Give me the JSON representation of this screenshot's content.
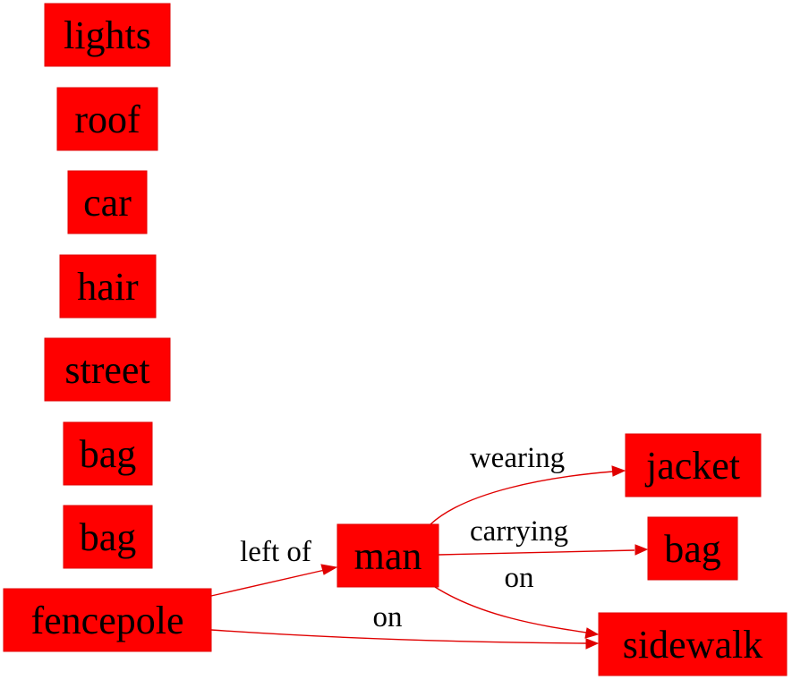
{
  "colors": {
    "node_fill": "#ff0000",
    "edge_stroke": "#e00000",
    "text": "#000000"
  },
  "nodes": [
    {
      "id": "lights",
      "label": "lights"
    },
    {
      "id": "roof",
      "label": "roof"
    },
    {
      "id": "car",
      "label": "car"
    },
    {
      "id": "hair",
      "label": "hair"
    },
    {
      "id": "street",
      "label": "street"
    },
    {
      "id": "bag1",
      "label": "bag"
    },
    {
      "id": "bag2",
      "label": "bag"
    },
    {
      "id": "fencepole",
      "label": "fencepole"
    },
    {
      "id": "man",
      "label": "man"
    },
    {
      "id": "jacket",
      "label": "jacket"
    },
    {
      "id": "bag3",
      "label": "bag"
    },
    {
      "id": "sidewalk",
      "label": "sidewalk"
    }
  ],
  "edges": [
    {
      "from": "fencepole",
      "to": "man",
      "label": "left of"
    },
    {
      "from": "man",
      "to": "jacket",
      "label": "wearing"
    },
    {
      "from": "man",
      "to": "bag3",
      "label": "carrying"
    },
    {
      "from": "man",
      "to": "sidewalk",
      "label": "on"
    },
    {
      "from": "fencepole",
      "to": "sidewalk",
      "label": "on"
    }
  ]
}
